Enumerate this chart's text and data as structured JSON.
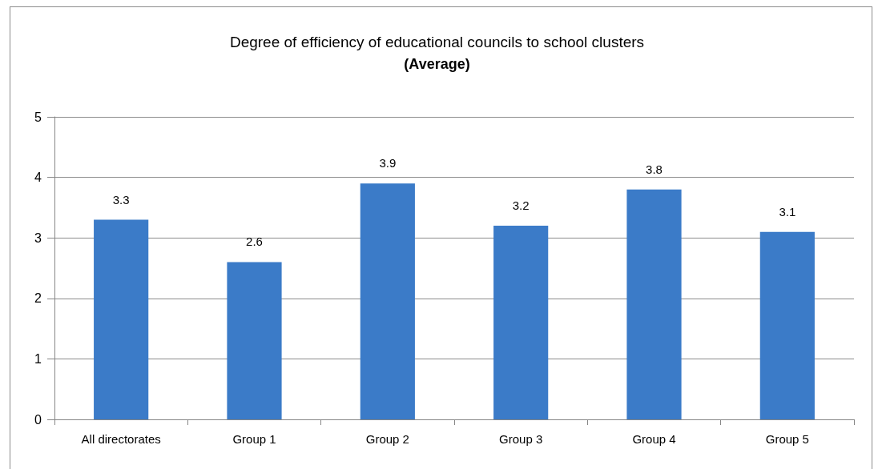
{
  "chart_data": {
    "type": "bar",
    "title": "Degree of efficiency of educational councils to school clusters",
    "subtitle": "(Average)",
    "categories": [
      "All directorates",
      "Group 1",
      "Group 2",
      "Group 3",
      "Group 4",
      "Group 5"
    ],
    "values": [
      3.3,
      2.6,
      3.9,
      3.2,
      3.8,
      3.1
    ],
    "color": "#3b7bc8",
    "ylim": [
      0,
      5
    ],
    "yticks": [
      0,
      1,
      2,
      3,
      4,
      5
    ],
    "grid": "y",
    "data_labels": true
  }
}
